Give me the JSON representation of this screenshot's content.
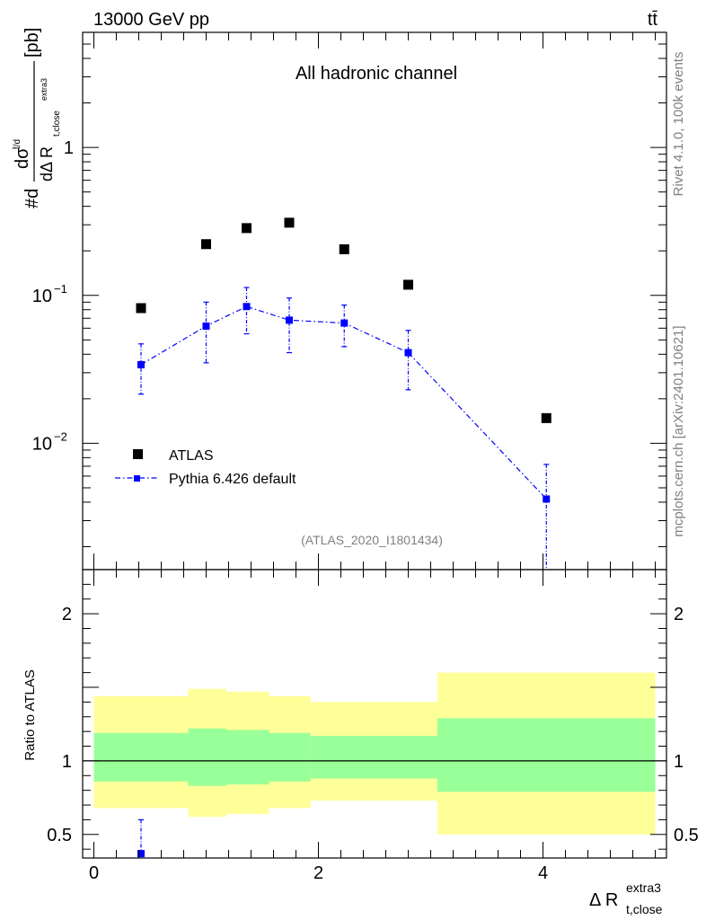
{
  "header": {
    "energy_label": "13000 GeV pp",
    "process_label": "tt̄"
  },
  "side_labels": {
    "rivet": "Rivet 4.1.0,  100k events",
    "mcplots": "mcplots.cern.ch [arXiv:2401.10621]"
  },
  "chart_data": [
    {
      "type": "scatter",
      "title": "All hadronic channel",
      "analysis_label": "(ATLAS_2020_I1801434)",
      "ylabel": {
        "prefix": "#d",
        "numerator": "dσ",
        "numerator_sup": "t̄/d",
        "denominator": "dΔ R",
        "denominator_sub": "t,close",
        "denominator_sup": "extra3",
        "unit": "[pb]"
      },
      "yscale": "log",
      "ylim": [
        0.0014,
        6.0
      ],
      "xlim": [
        -0.1,
        5.1
      ],
      "yticks": [
        {
          "value": 1,
          "label": "1"
        },
        {
          "value": 0.1,
          "label": "10",
          "exp": "−1"
        },
        {
          "value": 0.01,
          "label": "10",
          "exp": "−2"
        }
      ],
      "legend_position": "lower-left",
      "series": [
        {
          "name": "ATLAS",
          "color": "#000000",
          "marker": "square",
          "x": [
            0.42,
            1.0,
            1.36,
            1.74,
            2.23,
            2.8,
            4.03
          ],
          "y": [
            0.082,
            0.222,
            0.285,
            0.31,
            0.205,
            0.118,
            0.0148
          ]
        },
        {
          "name": "Pythia 6.426 default",
          "color": "#0000ff",
          "marker": "square",
          "line": "dash-dot",
          "x": [
            0.42,
            1.0,
            1.36,
            1.74,
            2.23,
            2.8,
            4.03
          ],
          "y": [
            0.034,
            0.062,
            0.084,
            0.068,
            0.065,
            0.041,
            0.0042
          ],
          "yerr_low": [
            0.0215,
            0.035,
            0.055,
            0.041,
            0.045,
            0.023,
            0.0013
          ],
          "yerr_high": [
            0.047,
            0.09,
            0.113,
            0.096,
            0.086,
            0.058,
            0.0072
          ]
        }
      ]
    },
    {
      "type": "ratio",
      "ylabel": "Ratio to ATLAS",
      "xlabel": "Δ R",
      "xlabel_sub": "t,close",
      "xlabel_sup": "extra3",
      "xlim": [
        -0.1,
        5.1
      ],
      "ylim": [
        0.34,
        2.3
      ],
      "xticks": [
        {
          "value": 0,
          "label": "0"
        },
        {
          "value": 2,
          "label": "2"
        },
        {
          "value": 4,
          "label": "4"
        }
      ],
      "yticks": [
        {
          "value": 2,
          "label": "2"
        },
        {
          "value": 1,
          "label": "1"
        },
        {
          "value": 0.5,
          "label": "0.5"
        }
      ],
      "bands": [
        {
          "x0": 0.0,
          "x1": 0.84,
          "yellow": [
            0.68,
            1.44
          ],
          "green": [
            0.86,
            1.19
          ]
        },
        {
          "x0": 0.84,
          "x1": 1.18,
          "yellow": [
            0.62,
            1.49
          ],
          "green": [
            0.83,
            1.22
          ]
        },
        {
          "x0": 1.18,
          "x1": 1.56,
          "yellow": [
            0.64,
            1.47
          ],
          "green": [
            0.84,
            1.21
          ]
        },
        {
          "x0": 1.56,
          "x1": 1.93,
          "yellow": [
            0.68,
            1.44
          ],
          "green": [
            0.86,
            1.19
          ]
        },
        {
          "x0": 1.93,
          "x1": 3.06,
          "yellow": [
            0.73,
            1.4
          ],
          "green": [
            0.88,
            1.17
          ]
        },
        {
          "x0": 3.06,
          "x1": 5.0,
          "yellow": [
            0.5,
            1.6
          ],
          "green": [
            0.79,
            1.29
          ]
        }
      ],
      "series": [
        {
          "name": "Pythia 6.426 default",
          "color": "#0000ff",
          "x": [
            0.42
          ],
          "y": [
            0.37
          ],
          "yerr_low": [
            0.34
          ],
          "yerr_high": [
            0.6
          ]
        }
      ]
    }
  ]
}
